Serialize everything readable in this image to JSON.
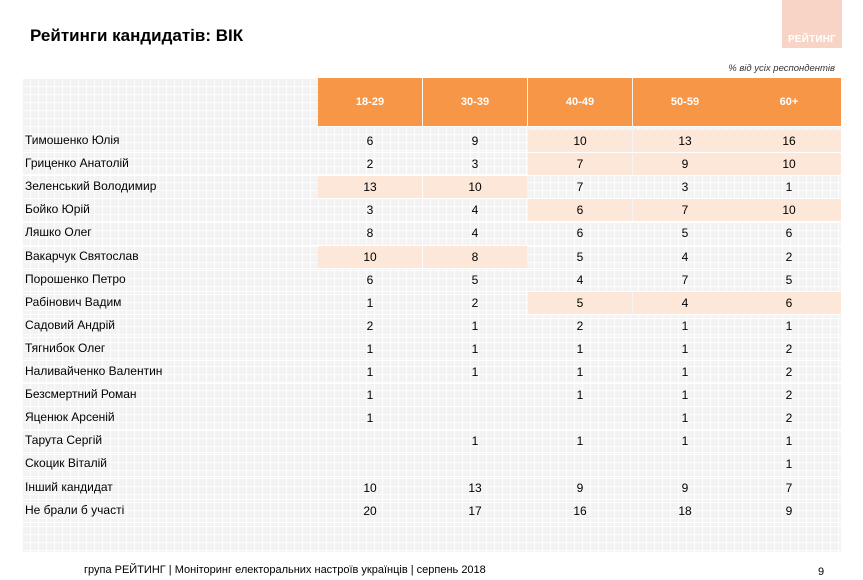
{
  "header": {
    "title": "Рейтинги кандидатів: ВІК",
    "logo_text": "РЕЙТИНГ",
    "note": "% від усіх респондентів"
  },
  "chart_data": {
    "type": "table",
    "columns": [
      "18-29",
      "30-39",
      "40-49",
      "50-59",
      "60+"
    ],
    "rows": [
      {
        "label": "Тимошенко Юлія",
        "values": [
          "6",
          "9",
          "10",
          "13",
          "16"
        ],
        "highlight": [
          false,
          false,
          true,
          true,
          true
        ]
      },
      {
        "label": "Гриценко Анатолій",
        "values": [
          "2",
          "3",
          "7",
          "9",
          "10"
        ],
        "highlight": [
          false,
          false,
          true,
          true,
          true
        ]
      },
      {
        "label": "Зеленський Володимир",
        "values": [
          "13",
          "10",
          "7",
          "3",
          "1"
        ],
        "highlight": [
          true,
          true,
          false,
          false,
          false
        ]
      },
      {
        "label": "Бойко Юрій",
        "values": [
          "3",
          "4",
          "6",
          "7",
          "10"
        ],
        "highlight": [
          false,
          false,
          true,
          true,
          true
        ]
      },
      {
        "label": "Ляшко Олег",
        "values": [
          "8",
          "4",
          "6",
          "5",
          "6"
        ],
        "highlight": [
          false,
          false,
          false,
          false,
          false
        ]
      },
      {
        "label": "Вакарчук Святослав",
        "values": [
          "10",
          "8",
          "5",
          "4",
          "2"
        ],
        "highlight": [
          true,
          true,
          false,
          false,
          false
        ]
      },
      {
        "label": "Порошенко Петро",
        "values": [
          "6",
          "5",
          "4",
          "7",
          "5"
        ],
        "highlight": [
          false,
          false,
          false,
          false,
          false
        ]
      },
      {
        "label": "Рабінович Вадим",
        "values": [
          "1",
          "2",
          "5",
          "4",
          "6"
        ],
        "highlight": [
          false,
          false,
          true,
          true,
          true
        ]
      },
      {
        "label": "Садовий Андрій",
        "values": [
          "2",
          "1",
          "2",
          "1",
          "1"
        ],
        "highlight": [
          false,
          false,
          false,
          false,
          false
        ]
      },
      {
        "label": "Тягнибок Олег",
        "values": [
          "1",
          "1",
          "1",
          "1",
          "2"
        ],
        "highlight": [
          false,
          false,
          false,
          false,
          false
        ]
      },
      {
        "label": "Наливайченко Валентин",
        "values": [
          "1",
          "1",
          "1",
          "1",
          "2"
        ],
        "highlight": [
          false,
          false,
          false,
          false,
          false
        ]
      },
      {
        "label": "Безсмертний Роман",
        "values": [
          "1",
          "",
          "1",
          "1",
          "2"
        ],
        "highlight": [
          false,
          false,
          false,
          false,
          false
        ]
      },
      {
        "label": "Яценюк Арсеній",
        "values": [
          "1",
          "",
          "",
          "1",
          "2"
        ],
        "highlight": [
          false,
          false,
          false,
          false,
          false
        ]
      },
      {
        "label": "Тарута Сергій",
        "values": [
          "",
          "1",
          "1",
          "1",
          "1"
        ],
        "highlight": [
          false,
          false,
          false,
          false,
          false
        ]
      },
      {
        "label": "Скоцик Віталій",
        "values": [
          "",
          "",
          "",
          "",
          "1"
        ],
        "highlight": [
          false,
          false,
          false,
          false,
          false
        ]
      },
      {
        "label": "Інший кандидат",
        "values": [
          "10",
          "13",
          "9",
          "9",
          "7"
        ],
        "highlight": [
          false,
          false,
          false,
          false,
          false
        ]
      },
      {
        "label": "Не брали б участі",
        "values": [
          "20",
          "17",
          "16",
          "18",
          "9"
        ],
        "highlight": [
          false,
          false,
          false,
          false,
          false
        ]
      }
    ]
  },
  "colors": {
    "header_bg": "#f79646",
    "highlight_bg": "#fde7d8",
    "logo_bg": "#f7d4c6"
  },
  "footer": {
    "text": "група РЕЙТИНГ |  Моніторинг електоральних настроїв українців | серпень  2018",
    "page": "9"
  }
}
